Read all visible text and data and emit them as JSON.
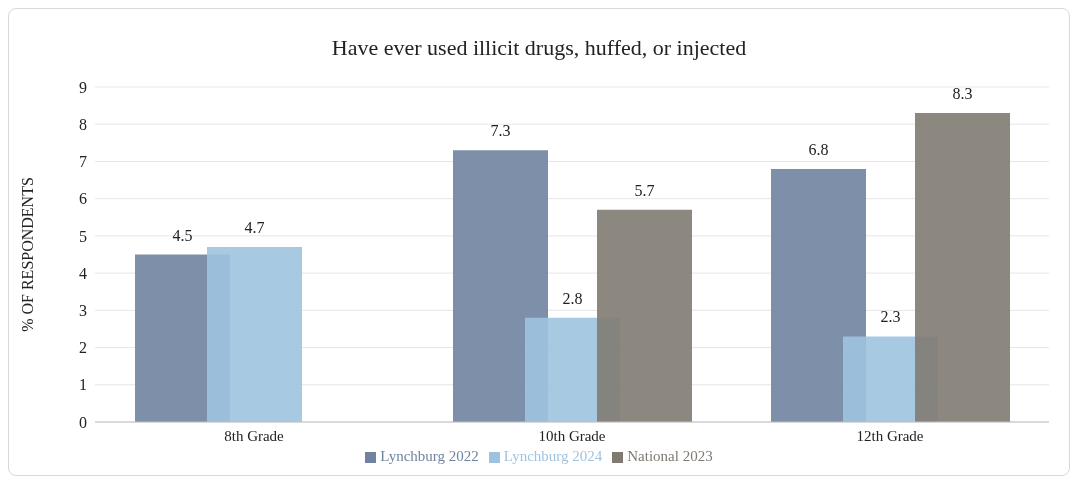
{
  "chart_data": {
    "type": "bar",
    "title": "Have ever used illicit drugs, huffed, or injected",
    "ylabel": "% OF RESPONDENTS",
    "categories": [
      "8th Grade",
      "10th Grade",
      "12th Grade"
    ],
    "series": [
      {
        "name": "Lynchburg 2022",
        "color": "#6f83a0",
        "values": [
          4.5,
          7.3,
          6.8
        ]
      },
      {
        "name": "Lynchburg 2024",
        "color": "#9ec3df",
        "values": [
          4.7,
          2.8,
          2.3
        ]
      },
      {
        "name": "National 2023",
        "color": "#7f7b72",
        "values": [
          null,
          5.7,
          8.3
        ]
      }
    ],
    "ylim": [
      0,
      9
    ],
    "yticks": [
      0,
      1,
      2,
      3,
      4,
      5,
      6,
      7,
      8,
      9
    ],
    "grid": "y",
    "legend": "bottom",
    "data_labels": true
  }
}
